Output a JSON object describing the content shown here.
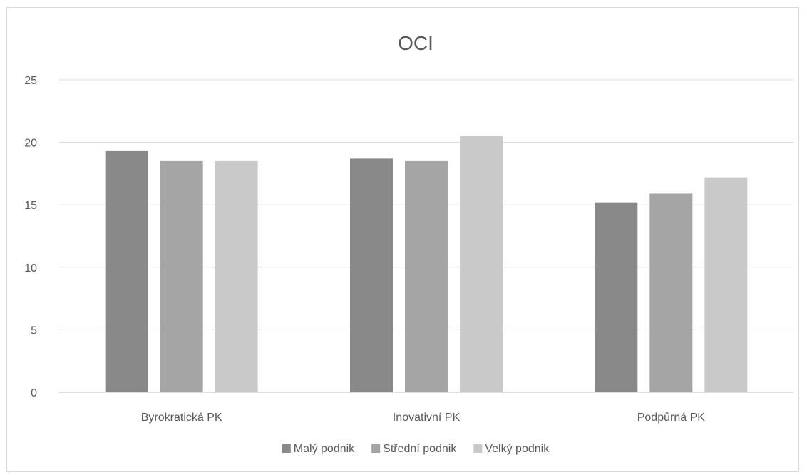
{
  "chart_data": {
    "type": "bar",
    "title": "OCI",
    "categories": [
      "Byrokratická PK",
      "Inovativní PK",
      "Podpůrná PK"
    ],
    "series": [
      {
        "name": "Malý podnik",
        "values": [
          19.3,
          18.7,
          15.2
        ],
        "color": "#898989"
      },
      {
        "name": "Střední podnik",
        "values": [
          18.5,
          18.5,
          15.9
        ],
        "color": "#a5a5a5"
      },
      {
        "name": "Velký podnik",
        "values": [
          18.5,
          20.5,
          17.2
        ],
        "color": "#c9c9c9"
      }
    ],
    "ylim": [
      0,
      25
    ],
    "yticks": [
      0,
      5,
      10,
      15,
      20,
      25
    ],
    "grid": true,
    "legend": "bottom",
    "xlabel": "",
    "ylabel": ""
  }
}
